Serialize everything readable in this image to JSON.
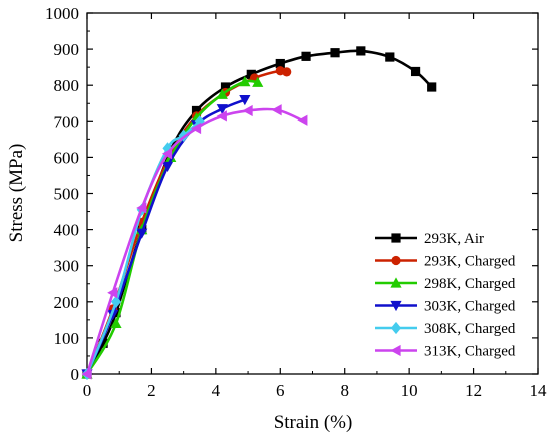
{
  "chart_data": {
    "type": "line",
    "title": "",
    "xlabel": "Strain (%)",
    "ylabel": "Stress (MPa)",
    "xlim": [
      0,
      14
    ],
    "ylim": [
      0,
      1000
    ],
    "xticks": [
      "0",
      "2",
      "4",
      "6",
      "8",
      "10",
      "12",
      "14"
    ],
    "yticks": [
      "0",
      "100",
      "200",
      "300",
      "400",
      "500",
      "600",
      "700",
      "800",
      "900",
      "1000"
    ],
    "grid": false,
    "legend_position": "bottom-right",
    "series": [
      {
        "name": "293K, Air",
        "color": "#000000",
        "marker": "square",
        "x": [
          0,
          0.5,
          0.9,
          1.7,
          2.6,
          3.4,
          4.3,
          5.1,
          6.0,
          6.8,
          7.7,
          8.5,
          9.4,
          10.2,
          10.7
        ],
        "y": [
          0,
          85,
          170,
          400,
          620,
          730,
          795,
          830,
          860,
          880,
          890,
          895,
          878,
          838,
          795
        ]
      },
      {
        "name": "293K, Charged",
        "color": "#cc2200",
        "marker": "circle",
        "x": [
          0,
          0.8,
          1.7,
          2.6,
          3.4,
          4.3,
          5.2,
          6.0,
          6.2
        ],
        "y": [
          0,
          180,
          420,
          610,
          715,
          780,
          820,
          840,
          837
        ]
      },
      {
        "name": "298K, Charged",
        "color": "#22cc00",
        "marker": "triangle-up",
        "x": [
          0,
          0.9,
          1.7,
          2.6,
          3.4,
          4.2,
          4.9,
          5.3
        ],
        "y": [
          0,
          140,
          400,
          600,
          710,
          775,
          810,
          808
        ]
      },
      {
        "name": "303K, Charged",
        "color": "#1010cc",
        "marker": "triangle-down",
        "x": [
          0,
          0.8,
          1.7,
          2.5,
          3.4,
          4.2,
          4.9
        ],
        "y": [
          0,
          165,
          390,
          575,
          690,
          735,
          760
        ]
      },
      {
        "name": "308K, Charged",
        "color": "#44ccee",
        "marker": "diamond",
        "x": [
          0,
          0.9,
          1.7,
          2.5,
          3.0,
          3.5
        ],
        "y": [
          0,
          200,
          455,
          625,
          660,
          700
        ]
      },
      {
        "name": "313K, Charged",
        "color": "#cc44ee",
        "marker": "triangle-left",
        "x": [
          0,
          0.8,
          1.7,
          2.5,
          3.4,
          4.2,
          5.0,
          5.9,
          6.7
        ],
        "y": [
          0,
          225,
          460,
          610,
          680,
          715,
          730,
          732,
          703
        ]
      }
    ]
  }
}
